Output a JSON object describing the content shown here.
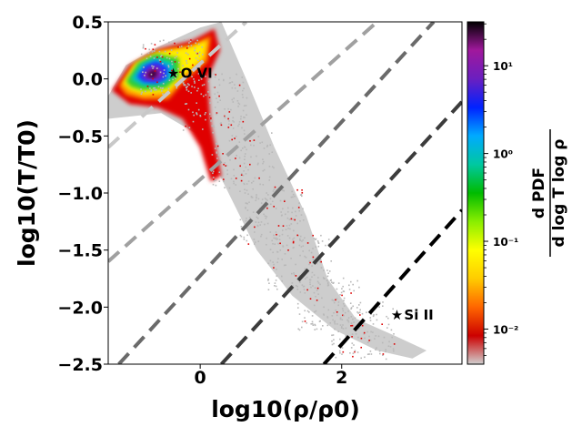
{
  "chart_data": {
    "type": "heatmap",
    "xlabel": "log10(ρ/ρ0)",
    "ylabel": "log10(T/T0)",
    "xlim": [
      -1.3,
      3.7
    ],
    "ylim": [
      -2.5,
      0.5
    ],
    "xticks": [
      {
        "value": 0,
        "label": "0"
      },
      {
        "value": 2,
        "label": "2"
      }
    ],
    "yticks": [
      {
        "value": 0.5,
        "label": "0.5"
      },
      {
        "value": 0.0,
        "label": "0.0"
      },
      {
        "value": -0.5,
        "label": "−0.5"
      },
      {
        "value": -1.0,
        "label": "−1.0"
      },
      {
        "value": -1.5,
        "label": "−1.5"
      },
      {
        "value": -2.0,
        "label": "−2.0"
      },
      {
        "value": -2.5,
        "label": "−2.5"
      }
    ],
    "annotations": [
      {
        "text": "O VI",
        "x": -0.38,
        "y": 0.05,
        "marker": "star"
      },
      {
        "text": "Si II",
        "x": 2.78,
        "y": -2.07,
        "marker": "star"
      }
    ],
    "dashed_lines": [
      {
        "name": "line-1",
        "x0": -1.3,
        "y0": -0.6,
        "x1": 0.65,
        "y1": 0.5,
        "color": "#c8c8c8"
      },
      {
        "name": "line-2",
        "x0": -1.3,
        "y0": -1.6,
        "x1": 2.5,
        "y1": 0.5,
        "color": "#a0a0a0"
      },
      {
        "name": "line-3",
        "x0": -1.15,
        "y0": -2.5,
        "x1": 3.3,
        "y1": 0.5,
        "color": "#6a6a6a"
      },
      {
        "name": "line-4",
        "x0": 0.3,
        "y0": -2.5,
        "x1": 3.7,
        "y1": -0.2,
        "color": "#3c3c3c"
      },
      {
        "name": "line-5",
        "x0": 1.75,
        "y0": -2.5,
        "x1": 3.7,
        "y1": -1.15,
        "color": "#000000"
      }
    ],
    "density_regions": [
      {
        "name": "diffuse-cloud",
        "level": "low",
        "color": "#c4c4c4",
        "points": [
          [
            -1.3,
            -0.15
          ],
          [
            -1.05,
            0.12
          ],
          [
            -0.6,
            0.28
          ],
          [
            0.0,
            0.45
          ],
          [
            0.3,
            0.5
          ],
          [
            0.65,
            0.0
          ],
          [
            1.05,
            -0.6
          ],
          [
            1.5,
            -1.2
          ],
          [
            1.8,
            -1.75
          ],
          [
            2.2,
            -2.1
          ],
          [
            2.75,
            -2.25
          ],
          [
            3.2,
            -2.38
          ],
          [
            3.0,
            -2.45
          ],
          [
            2.5,
            -2.38
          ],
          [
            1.9,
            -2.2
          ],
          [
            1.3,
            -1.9
          ],
          [
            0.8,
            -1.5
          ],
          [
            0.4,
            -1.0
          ],
          [
            0.0,
            -0.5
          ],
          [
            -0.55,
            -0.3
          ],
          [
            -1.3,
            -0.35
          ]
        ]
      },
      {
        "name": "red-band",
        "level": "1e-2",
        "color": "#e00000",
        "points": [
          [
            -1.25,
            -0.1
          ],
          [
            -1.0,
            0.12
          ],
          [
            -0.6,
            0.26
          ],
          [
            -0.1,
            0.34
          ],
          [
            0.2,
            0.44
          ],
          [
            0.28,
            0.25
          ],
          [
            0.1,
            0.0
          ],
          [
            0.15,
            -0.4
          ],
          [
            0.3,
            -0.85
          ],
          [
            0.15,
            -0.9
          ],
          [
            0.0,
            -0.6
          ],
          [
            -0.25,
            -0.35
          ],
          [
            -0.6,
            -0.25
          ],
          [
            -1.0,
            -0.22
          ]
        ]
      },
      {
        "name": "orange-band",
        "level": "3e-2",
        "color": "#ff8c00",
        "points": [
          [
            -1.15,
            -0.06
          ],
          [
            -0.95,
            0.12
          ],
          [
            -0.6,
            0.24
          ],
          [
            -0.1,
            0.3
          ],
          [
            0.15,
            0.38
          ],
          [
            0.1,
            0.15
          ],
          [
            -0.2,
            0.0
          ],
          [
            -0.45,
            -0.18
          ],
          [
            -0.8,
            -0.18
          ],
          [
            -1.05,
            -0.14
          ]
        ]
      },
      {
        "name": "yellow-band",
        "level": "1e-1",
        "color": "#ffee00",
        "points": [
          [
            -1.1,
            -0.04
          ],
          [
            -0.92,
            0.14
          ],
          [
            -0.6,
            0.24
          ],
          [
            -0.15,
            0.28
          ],
          [
            0.1,
            0.34
          ],
          [
            0.05,
            0.18
          ],
          [
            -0.25,
            0.02
          ],
          [
            -0.45,
            -0.12
          ],
          [
            -0.8,
            -0.14
          ],
          [
            -1.0,
            -0.1
          ]
        ]
      },
      {
        "name": "green-band",
        "level": "3e-1",
        "color": "#33cc33",
        "points": [
          [
            -1.05,
            -0.02
          ],
          [
            -0.88,
            0.14
          ],
          [
            -0.62,
            0.22
          ],
          [
            -0.3,
            0.18
          ],
          [
            -0.3,
            0.02
          ],
          [
            -0.48,
            -0.08
          ],
          [
            -0.8,
            -0.1
          ],
          [
            -0.98,
            -0.07
          ]
        ]
      },
      {
        "name": "cyan-band",
        "level": "1e0",
        "color": "#00c8c8",
        "points": [
          [
            -0.98,
            0.0
          ],
          [
            -0.84,
            0.13
          ],
          [
            -0.64,
            0.19
          ],
          [
            -0.38,
            0.14
          ],
          [
            -0.38,
            0.02
          ],
          [
            -0.52,
            -0.05
          ],
          [
            -0.82,
            -0.06
          ]
        ]
      },
      {
        "name": "blue-band",
        "level": "3e0",
        "color": "#2030ff",
        "points": [
          [
            -0.9,
            0.02
          ],
          [
            -0.78,
            0.12
          ],
          [
            -0.62,
            0.16
          ],
          [
            -0.45,
            0.1
          ],
          [
            -0.47,
            0.0
          ],
          [
            -0.62,
            -0.04
          ],
          [
            -0.8,
            -0.03
          ]
        ]
      },
      {
        "name": "purple-core",
        "level": "1e1",
        "color": "#8a1fb0",
        "points": [
          [
            -0.82,
            0.03
          ],
          [
            -0.72,
            0.1
          ],
          [
            -0.6,
            0.12
          ],
          [
            -0.52,
            0.05
          ],
          [
            -0.58,
            -0.01
          ],
          [
            -0.75,
            -0.01
          ]
        ]
      },
      {
        "name": "peak-core",
        "level": "3e1",
        "color": "#3a0030",
        "points": [
          [
            -0.75,
            0.04
          ],
          [
            -0.67,
            0.08
          ],
          [
            -0.6,
            0.06
          ],
          [
            -0.64,
            0.01
          ],
          [
            -0.72,
            0.01
          ]
        ]
      }
    ],
    "colorbar": {
      "label_numerator": "d PDF",
      "label_denominator": "d log T log ρ",
      "scale": "log",
      "min_exp": -2.4,
      "max_exp": 1.5,
      "ticks": [
        {
          "exp": 1,
          "label": "10¹"
        },
        {
          "exp": 0,
          "label": "10⁰"
        },
        {
          "exp": -1,
          "label": "10⁻¹"
        },
        {
          "exp": -2,
          "label": "10⁻²"
        }
      ],
      "colors": [
        "#d0d0d0",
        "#cc0000",
        "#ff6600",
        "#ffcc00",
        "#ffff00",
        "#88ee00",
        "#00bb00",
        "#00c8a0",
        "#00aaff",
        "#0022ff",
        "#6a1fc0",
        "#a0189c",
        "#000000"
      ]
    }
  }
}
